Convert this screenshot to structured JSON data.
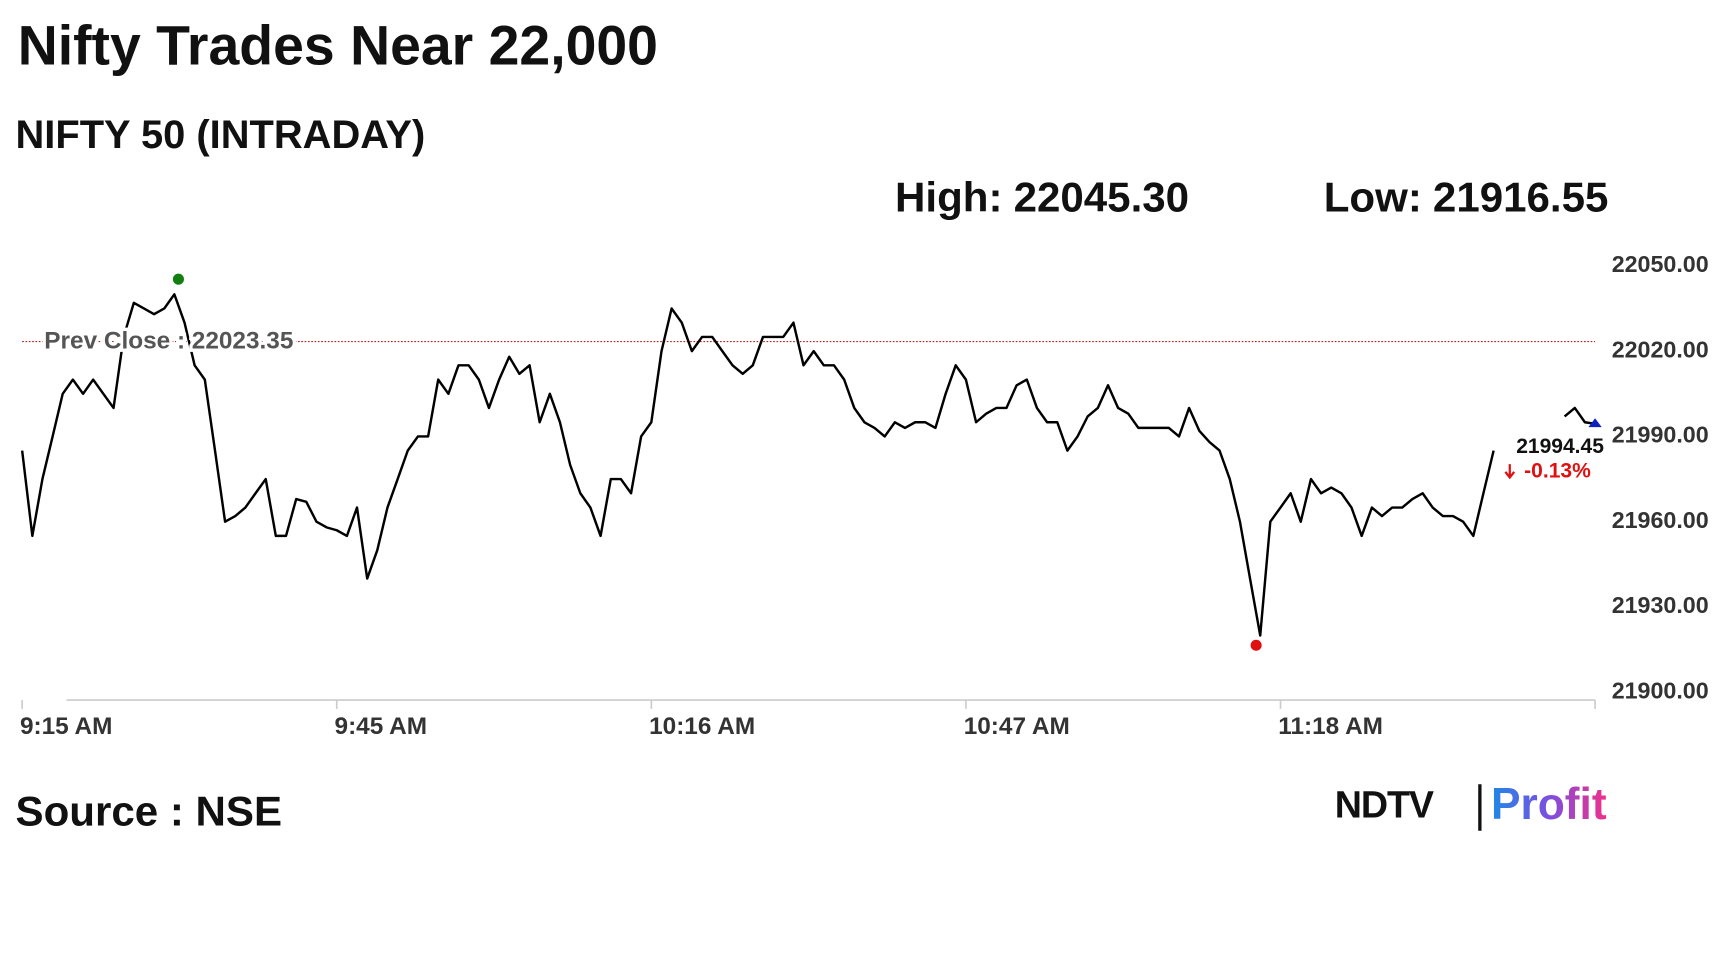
{
  "chart_data": {
    "type": "line",
    "title": "Nifty Trades Near 22,000",
    "subtitle": "NIFTY 50 (INTRADAY)",
    "source": "Source : NSE",
    "logo": [
      "NDTV",
      "Profit"
    ],
    "stats": [
      {
        "name": "High:",
        "value": 22045.3,
        "value_label": "22045.30",
        "x": 15.4,
        "color": "#118011"
      },
      {
        "name": "Low:",
        "value": 21916.55,
        "value_label": "21916.55",
        "x": 121.6,
        "color": "#e01010"
      }
    ],
    "last": {
      "value": 21994.45,
      "value_label": "21994.45",
      "x": 155,
      "color": "#1020c0",
      "change": -0.13,
      "change_label": "-0.13%",
      "change_color": "#e01010"
    },
    "prev_close": {
      "name": "Prev Close :",
      "value": 22023.35,
      "value_label": "22023.35",
      "color": "#c02020"
    },
    "x": [
      0,
      1,
      2,
      3,
      4,
      5,
      6,
      7,
      8,
      9,
      10,
      11,
      12,
      13,
      14,
      15,
      16,
      17,
      18,
      19,
      20,
      21,
      22,
      23,
      24,
      25,
      26,
      27,
      28,
      29,
      30,
      31,
      32,
      33,
      34,
      35,
      36,
      37,
      38,
      39,
      40,
      41,
      42,
      43,
      44,
      45,
      46,
      47,
      48,
      49,
      50,
      51,
      52,
      53,
      54,
      55,
      56,
      57,
      58,
      59,
      60,
      61,
      62,
      63,
      64,
      65,
      66,
      67,
      68,
      69,
      70,
      71,
      72,
      73,
      74,
      75,
      76,
      77,
      78,
      79,
      80,
      81,
      82,
      83,
      84,
      85,
      86,
      87,
      88,
      89,
      90,
      91,
      92,
      93,
      94,
      95,
      96,
      97,
      98,
      99,
      100,
      101,
      102,
      103,
      104,
      105,
      106,
      107,
      108,
      109,
      110,
      111,
      112,
      113,
      114,
      115,
      116,
      117,
      118,
      119,
      120,
      121,
      122,
      123,
      124,
      125,
      126,
      127,
      128,
      129,
      130,
      131,
      132,
      133,
      134,
      135,
      136,
      137,
      138,
      139,
      140,
      141,
      142,
      143,
      144,
      145,
      146,
      147,
      148,
      149,
      150,
      151,
      152,
      153,
      154,
      155
    ],
    "series": [
      {
        "name": "NIFTY 50",
        "color": "#000000",
        "values": [
          21985,
          21955,
          21975,
          21990,
          22005,
          22010,
          22005,
          22010,
          22005,
          22000,
          22025,
          22037,
          22035,
          22033,
          22035,
          22040,
          22030,
          22015,
          22010,
          21985,
          21960,
          21962,
          21965,
          21970,
          21975,
          21955,
          21955,
          21968,
          21967,
          21960,
          21958,
          21957,
          21955,
          21965,
          21940,
          21950,
          21965,
          21975,
          21985,
          21990,
          21990,
          22010,
          22005,
          22015,
          22015,
          22010,
          22000,
          22010,
          22018,
          22012,
          22015,
          21995,
          22005,
          21995,
          21980,
          21970,
          21965,
          21955,
          21975,
          21975,
          21970,
          21990,
          21995,
          22020,
          22035,
          22030,
          22020,
          22025,
          22025,
          22020,
          22015,
          22012,
          22015,
          22025,
          22025,
          22025,
          22030,
          22015,
          22020,
          22015,
          22015,
          22010,
          22000,
          21995,
          21993,
          21990,
          21995,
          21993,
          21995,
          21995,
          21993,
          22005,
          22015,
          22010,
          21995,
          21998,
          22000,
          22000,
          22008,
          22010,
          22000,
          21995,
          21995,
          21985,
          21990,
          21997,
          22000,
          22008,
          22000,
          21998,
          21993,
          21993,
          21993,
          21993,
          21990,
          22000,
          21992,
          21988,
          21985,
          21975,
          21960,
          21940,
          21920,
          21960,
          21965,
          21970,
          21960,
          21975,
          21970,
          21972,
          21970,
          21965,
          21955,
          21965,
          21962,
          21965,
          21965,
          21968,
          21970,
          21965,
          21962,
          21962,
          21960,
          21955,
          21970,
          21985,
          null,
          null,
          null,
          null,
          null,
          null,
          21997,
          22000,
          21995,
          21994.45
        ]
      }
    ],
    "xlim": [
      0,
      155
    ],
    "xticks": [
      {
        "value": 0,
        "label": "9:15 AM"
      },
      {
        "value": 31,
        "label": "9:45 AM"
      },
      {
        "value": 62,
        "label": "10:16 AM"
      },
      {
        "value": 93,
        "label": "10:47 AM"
      },
      {
        "value": 124,
        "label": "11:18 AM"
      }
    ],
    "ylim": [
      21900,
      22050
    ],
    "yticks": [
      {
        "value": 21900,
        "label": "21900.00"
      },
      {
        "value": 21930,
        "label": "21930.00"
      },
      {
        "value": 21960,
        "label": "21960.00"
      },
      {
        "value": 21990,
        "label": "21990.00"
      },
      {
        "value": 22020,
        "label": "22020.00"
      },
      {
        "value": 22050,
        "label": "22050.00"
      }
    ]
  }
}
